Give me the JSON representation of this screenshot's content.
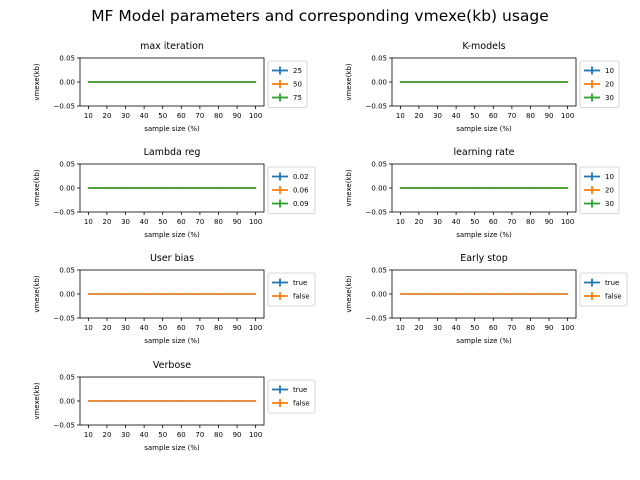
{
  "figure": {
    "title": "MF Model parameters and corresponding vmexe(kb) usage"
  },
  "chart_data": [
    {
      "type": "line",
      "title": "max iteration",
      "xlabel": "sample size (%)",
      "ylabel": "vmexe(kb)",
      "x": [
        10,
        20,
        30,
        40,
        50,
        60,
        70,
        80,
        90,
        100
      ],
      "xticks": [
        "10",
        "20",
        "30",
        "40",
        "50",
        "60",
        "70",
        "80",
        "90",
        "100"
      ],
      "ylim": [
        -0.05,
        0.05
      ],
      "yticks": [
        "0.05",
        "0.00",
        "−0.05"
      ],
      "legend": "right",
      "series": [
        {
          "name": "25",
          "color": "#1f77b4",
          "values": [
            0,
            0,
            0,
            0,
            0,
            0,
            0,
            0,
            0,
            0
          ]
        },
        {
          "name": "50",
          "color": "#ff7f0e",
          "values": [
            0,
            0,
            0,
            0,
            0,
            0,
            0,
            0,
            0,
            0
          ]
        },
        {
          "name": "75",
          "color": "#2ca02c",
          "values": [
            0,
            0,
            0,
            0,
            0,
            0,
            0,
            0,
            0,
            0
          ]
        }
      ]
    },
    {
      "type": "line",
      "title": "K-models",
      "xlabel": "sample size (%)",
      "ylabel": "vmexe(kb)",
      "x": [
        10,
        20,
        30,
        40,
        50,
        60,
        70,
        80,
        90,
        100
      ],
      "xticks": [
        "10",
        "20",
        "30",
        "40",
        "50",
        "60",
        "70",
        "80",
        "90",
        "100"
      ],
      "ylim": [
        -0.05,
        0.05
      ],
      "yticks": [
        "0.05",
        "0.00",
        "−0.05"
      ],
      "legend": "right",
      "series": [
        {
          "name": "10",
          "color": "#1f77b4",
          "values": [
            0,
            0,
            0,
            0,
            0,
            0,
            0,
            0,
            0,
            0
          ]
        },
        {
          "name": "20",
          "color": "#ff7f0e",
          "values": [
            0,
            0,
            0,
            0,
            0,
            0,
            0,
            0,
            0,
            0
          ]
        },
        {
          "name": "30",
          "color": "#2ca02c",
          "values": [
            0,
            0,
            0,
            0,
            0,
            0,
            0,
            0,
            0,
            0
          ]
        }
      ]
    },
    {
      "type": "line",
      "title": "Lambda reg",
      "xlabel": "sample size (%)",
      "ylabel": "vmexe(kb)",
      "x": [
        10,
        20,
        30,
        40,
        50,
        60,
        70,
        80,
        90,
        100
      ],
      "xticks": [
        "10",
        "20",
        "30",
        "40",
        "50",
        "60",
        "70",
        "80",
        "90",
        "100"
      ],
      "ylim": [
        -0.05,
        0.05
      ],
      "yticks": [
        "0.05",
        "0.00",
        "−0.05"
      ],
      "legend": "right",
      "series": [
        {
          "name": "0.02",
          "color": "#1f77b4",
          "values": [
            0,
            0,
            0,
            0,
            0,
            0,
            0,
            0,
            0,
            0
          ]
        },
        {
          "name": "0.06",
          "color": "#ff7f0e",
          "values": [
            0,
            0,
            0,
            0,
            0,
            0,
            0,
            0,
            0,
            0
          ]
        },
        {
          "name": "0.09",
          "color": "#2ca02c",
          "values": [
            0,
            0,
            0,
            0,
            0,
            0,
            0,
            0,
            0,
            0
          ]
        }
      ]
    },
    {
      "type": "line",
      "title": "learning rate",
      "xlabel": "sample size (%)",
      "ylabel": "vmexe(kb)",
      "x": [
        10,
        20,
        30,
        40,
        50,
        60,
        70,
        80,
        90,
        100
      ],
      "xticks": [
        "10",
        "20",
        "30",
        "40",
        "50",
        "60",
        "70",
        "80",
        "90",
        "100"
      ],
      "ylim": [
        -0.05,
        0.05
      ],
      "yticks": [
        "0.05",
        "0.00",
        "−0.05"
      ],
      "legend": "right",
      "series": [
        {
          "name": "10",
          "color": "#1f77b4",
          "values": [
            0,
            0,
            0,
            0,
            0,
            0,
            0,
            0,
            0,
            0
          ]
        },
        {
          "name": "20",
          "color": "#ff7f0e",
          "values": [
            0,
            0,
            0,
            0,
            0,
            0,
            0,
            0,
            0,
            0
          ]
        },
        {
          "name": "30",
          "color": "#2ca02c",
          "values": [
            0,
            0,
            0,
            0,
            0,
            0,
            0,
            0,
            0,
            0
          ]
        }
      ]
    },
    {
      "type": "line",
      "title": "User bias",
      "xlabel": "sample size (%)",
      "ylabel": "vmexe(kb)",
      "x": [
        10,
        20,
        30,
        40,
        50,
        60,
        70,
        80,
        90,
        100
      ],
      "xticks": [
        "10",
        "20",
        "30",
        "40",
        "50",
        "60",
        "70",
        "80",
        "90",
        "100"
      ],
      "ylim": [
        -0.05,
        0.05
      ],
      "yticks": [
        "0.05",
        "0.00",
        "−0.05"
      ],
      "legend": "right",
      "series": [
        {
          "name": "true",
          "color": "#1f77b4",
          "values": [
            0,
            0,
            0,
            0,
            0,
            0,
            0,
            0,
            0,
            0
          ]
        },
        {
          "name": "false",
          "color": "#ff7f0e",
          "values": [
            0,
            0,
            0,
            0,
            0,
            0,
            0,
            0,
            0,
            0
          ]
        }
      ]
    },
    {
      "type": "line",
      "title": "Early stop",
      "xlabel": "sample size (%)",
      "ylabel": "vmexe(kb)",
      "x": [
        10,
        20,
        30,
        40,
        50,
        60,
        70,
        80,
        90,
        100
      ],
      "xticks": [
        "10",
        "20",
        "30",
        "40",
        "50",
        "60",
        "70",
        "80",
        "90",
        "100"
      ],
      "ylim": [
        -0.05,
        0.05
      ],
      "yticks": [
        "0.05",
        "0.00",
        "−0.05"
      ],
      "legend": "right",
      "series": [
        {
          "name": "true",
          "color": "#1f77b4",
          "values": [
            0,
            0,
            0,
            0,
            0,
            0,
            0,
            0,
            0,
            0
          ]
        },
        {
          "name": "false",
          "color": "#ff7f0e",
          "values": [
            0,
            0,
            0,
            0,
            0,
            0,
            0,
            0,
            0,
            0
          ]
        }
      ]
    },
    {
      "type": "line",
      "title": "Verbose",
      "xlabel": "sample size (%)",
      "ylabel": "vmexe(kb)",
      "x": [
        10,
        20,
        30,
        40,
        50,
        60,
        70,
        80,
        90,
        100
      ],
      "xticks": [
        "10",
        "20",
        "30",
        "40",
        "50",
        "60",
        "70",
        "80",
        "90",
        "100"
      ],
      "ylim": [
        -0.05,
        0.05
      ],
      "yticks": [
        "0.05",
        "0.00",
        "−0.05"
      ],
      "legend": "right",
      "series": [
        {
          "name": "true",
          "color": "#1f77b4",
          "values": [
            0,
            0,
            0,
            0,
            0,
            0,
            0,
            0,
            0,
            0
          ]
        },
        {
          "name": "false",
          "color": "#ff7f0e",
          "values": [
            0,
            0,
            0,
            0,
            0,
            0,
            0,
            0,
            0,
            0
          ]
        }
      ]
    }
  ]
}
